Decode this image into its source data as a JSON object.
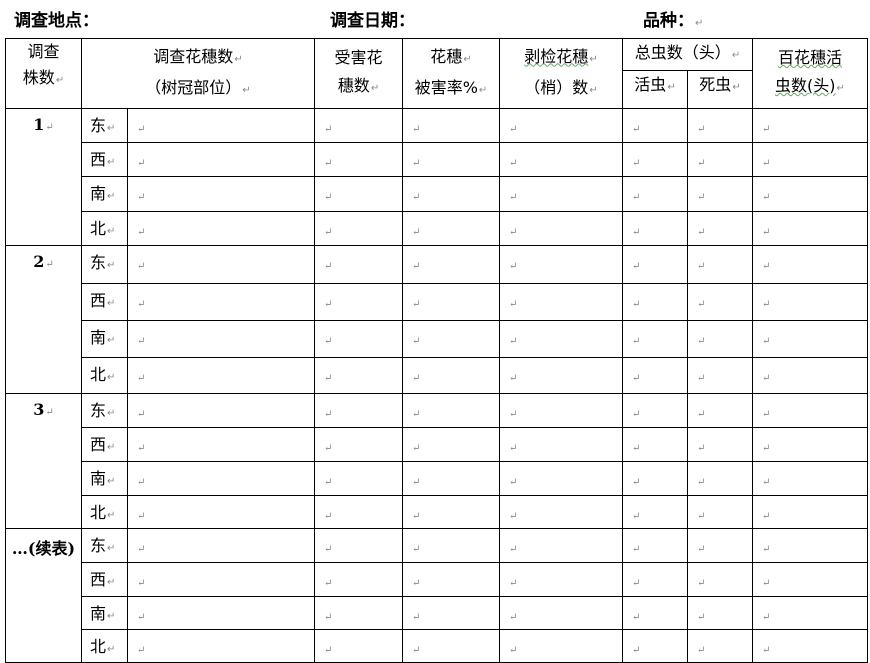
{
  "header": {
    "location_label": "调查地点：",
    "date_label": "调查日期：",
    "variety_label": "品种："
  },
  "paragraph_mark": "↵",
  "columns": {
    "plant_count": [
      "调查",
      "株数"
    ],
    "panicles_surveyed": [
      "调查花穗数",
      "（树冠部位）"
    ],
    "damaged_panicles": [
      "受害花",
      "穗数"
    ],
    "damage_rate": [
      "花穗",
      "被害率%"
    ],
    "dissected_panicles": [
      "剥检花穗",
      "（梢）数"
    ],
    "total_insects": "总虫数（头）",
    "live_insects": "活虫",
    "dead_insects": "死虫",
    "live_per_100": [
      "百花穗活",
      "虫数(头)"
    ]
  },
  "groups": [
    {
      "label": "1",
      "directions": [
        "东",
        "西",
        "南",
        "北"
      ]
    },
    {
      "label": "2",
      "directions": [
        "东",
        "西",
        "南",
        "北"
      ]
    },
    {
      "label": "3",
      "directions": [
        "东",
        "西",
        "南",
        "北"
      ]
    },
    {
      "label": "…(续表)",
      "directions": [
        "东",
        "西",
        "南",
        "北"
      ]
    }
  ]
}
